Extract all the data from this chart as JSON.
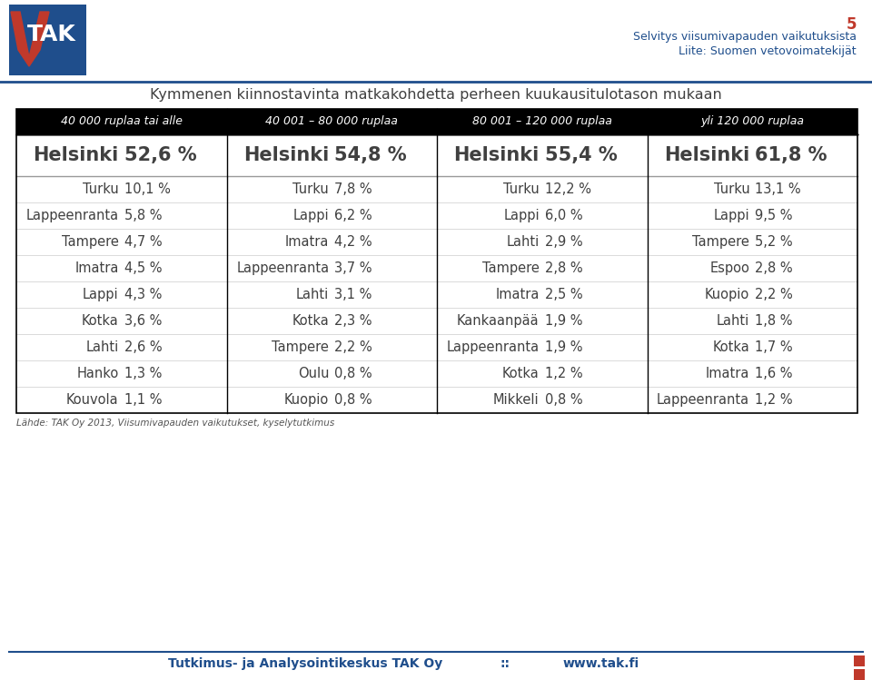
{
  "title": "Kymmenen kiinnostavinta matkakohdetta perheen kuukausitulotason mukaan",
  "page_number": "5",
  "header_right_line1": "Selvitys viisumivapauden vaikutuksista",
  "header_right_line2": "Liite: Suomen vetovoimatekijät",
  "footer_left": "Tutkimus- ja Analysointikeskus TAK Oy",
  "footer_separator": "::",
  "footer_right": "www.tak.fi",
  "source_text": "Lähde: TAK Oy 2013, Viisumivapauden vaikutukset, kyselytutkimus",
  "columns": [
    {
      "header": "40 000 ruplaa tai alle",
      "rows": [
        [
          "Helsinki",
          "52,6 %"
        ],
        [
          "Turku",
          "10,1 %"
        ],
        [
          "Lappeenranta",
          "5,8 %"
        ],
        [
          "Tampere",
          "4,7 %"
        ],
        [
          "Imatra",
          "4,5 %"
        ],
        [
          "Lappi",
          "4,3 %"
        ],
        [
          "Kotka",
          "3,6 %"
        ],
        [
          "Lahti",
          "2,6 %"
        ],
        [
          "Hanko",
          "1,3 %"
        ],
        [
          "Kouvola",
          "1,1 %"
        ]
      ]
    },
    {
      "header": "40 001 – 80 000 ruplaa",
      "rows": [
        [
          "Helsinki",
          "54,8 %"
        ],
        [
          "Turku",
          "7,8 %"
        ],
        [
          "Lappi",
          "6,2 %"
        ],
        [
          "Imatra",
          "4,2 %"
        ],
        [
          "Lappeenranta",
          "3,7 %"
        ],
        [
          "Lahti",
          "3,1 %"
        ],
        [
          "Kotka",
          "2,3 %"
        ],
        [
          "Tampere",
          "2,2 %"
        ],
        [
          "Oulu",
          "0,8 %"
        ],
        [
          "Kuopio",
          "0,8 %"
        ]
      ]
    },
    {
      "header": "80 001 – 120 000 ruplaa",
      "rows": [
        [
          "Helsinki",
          "55,4 %"
        ],
        [
          "Turku",
          "12,2 %"
        ],
        [
          "Lappi",
          "6,0 %"
        ],
        [
          "Lahti",
          "2,9 %"
        ],
        [
          "Tampere",
          "2,8 %"
        ],
        [
          "Imatra",
          "2,5 %"
        ],
        [
          "Kankaanpää",
          "1,9 %"
        ],
        [
          "Lappeenranta",
          "1,9 %"
        ],
        [
          "Kotka",
          "1,2 %"
        ],
        [
          "Mikkeli",
          "0,8 %"
        ]
      ]
    },
    {
      "header": "yli 120 000 ruplaa",
      "rows": [
        [
          "Helsinki",
          "61,8 %"
        ],
        [
          "Turku",
          "13,1 %"
        ],
        [
          "Lappi",
          "9,5 %"
        ],
        [
          "Tampere",
          "5,2 %"
        ],
        [
          "Espoo",
          "2,8 %"
        ],
        [
          "Kuopio",
          "2,2 %"
        ],
        [
          "Lahti",
          "1,8 %"
        ],
        [
          "Kotka",
          "1,7 %"
        ],
        [
          "Imatra",
          "1,6 %"
        ],
        [
          "Lappeenranta",
          "1,2 %"
        ]
      ]
    }
  ],
  "header_bg": "#000000",
  "header_text_color": "#ffffff",
  "body_bg": "#ffffff",
  "body_text_color": "#404040",
  "border_color": "#000000",
  "title_color": "#404040",
  "accent_color": "#1f4e8c",
  "footer_color": "#1f4e8c",
  "page_num_color": "#c0392b",
  "logo_bg": "#1f4e8c",
  "logo_red": "#c0392b",
  "sq_colors": [
    "#c0392b",
    "#c0392b",
    "#c0392b"
  ]
}
